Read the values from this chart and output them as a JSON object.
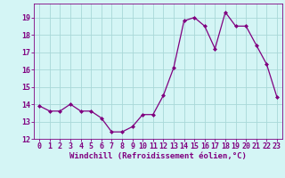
{
  "x": [
    0,
    1,
    2,
    3,
    4,
    5,
    6,
    7,
    8,
    9,
    10,
    11,
    12,
    13,
    14,
    15,
    16,
    17,
    18,
    19,
    20,
    21,
    22,
    23
  ],
  "y": [
    13.9,
    13.6,
    13.6,
    14.0,
    13.6,
    13.6,
    13.2,
    12.4,
    12.4,
    12.7,
    13.4,
    13.4,
    14.5,
    16.1,
    18.8,
    19.0,
    18.5,
    17.2,
    19.3,
    18.5,
    18.5,
    17.4,
    16.3,
    14.4
  ],
  "line_color": "#800080",
  "marker": "D",
  "marker_size": 2,
  "bg_color": "#d4f5f5",
  "grid_color": "#a8d8d8",
  "xlabel": "Windchill (Refroidissement éolien,°C)",
  "xlabel_fontsize": 6.5,
  "ylim": [
    12,
    19.8
  ],
  "xlim": [
    -0.5,
    23.5
  ],
  "yticks": [
    12,
    13,
    14,
    15,
    16,
    17,
    18,
    19
  ],
  "xticks": [
    0,
    1,
    2,
    3,
    4,
    5,
    6,
    7,
    8,
    9,
    10,
    11,
    12,
    13,
    14,
    15,
    16,
    17,
    18,
    19,
    20,
    21,
    22,
    23
  ],
  "tick_fontsize": 6,
  "spine_color": "#800080",
  "line_width": 0.9
}
